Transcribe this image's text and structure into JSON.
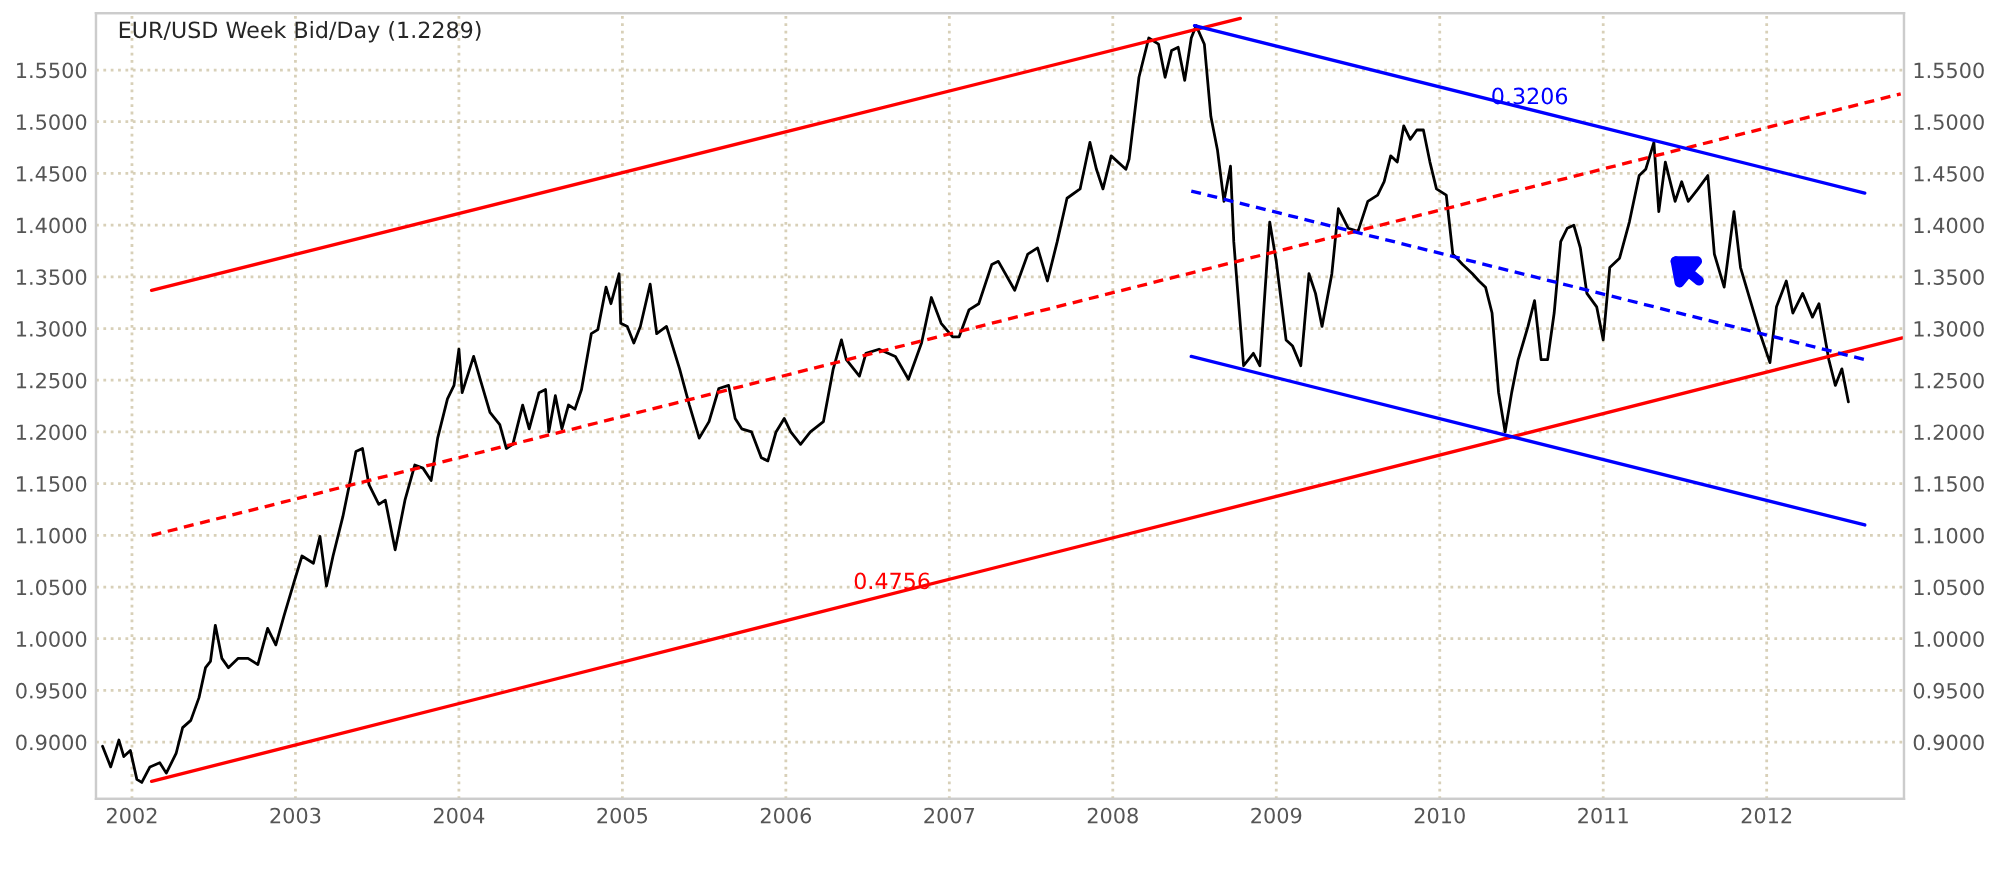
{
  "chart_data": {
    "type": "line",
    "title": "EUR/USD Week Bid/Day (1.2289)",
    "xlim": [
      2001.78,
      2012.84
    ],
    "xticks": [
      2002,
      2003,
      2004,
      2005,
      2006,
      2007,
      2008,
      2009,
      2010,
      2011,
      2012
    ],
    "ylim": [
      0.845,
      1.605
    ],
    "yticks": [
      {
        "value": 0.9,
        "label": "0.9000"
      },
      {
        "value": 0.95,
        "label": "0.9500"
      },
      {
        "value": 1.0,
        "label": "1.0000"
      },
      {
        "value": 1.05,
        "label": "1.0500"
      },
      {
        "value": 1.1,
        "label": "1.1000"
      },
      {
        "value": 1.15,
        "label": "1.1500"
      },
      {
        "value": 1.2,
        "label": "1.2000"
      },
      {
        "value": 1.25,
        "label": "1.2500"
      },
      {
        "value": 1.3,
        "label": "1.3000"
      },
      {
        "value": 1.35,
        "label": "1.3500"
      },
      {
        "value": 1.4,
        "label": "1.4000"
      },
      {
        "value": 1.45,
        "label": "1.4500"
      },
      {
        "value": 1.5,
        "label": "1.5000"
      },
      {
        "value": 1.55,
        "label": "1.5500"
      }
    ],
    "y2lim": [
      0.845,
      1.605
    ],
    "y2ticks": [
      {
        "value": 0.9,
        "label": "0.9000"
      },
      {
        "value": 0.95,
        "label": "0.9500"
      },
      {
        "value": 1.0,
        "label": "1.0000"
      },
      {
        "value": 1.05,
        "label": "1.0500"
      },
      {
        "value": 1.1,
        "label": "1.1000"
      },
      {
        "value": 1.15,
        "label": "1.1500"
      },
      {
        "value": 1.2,
        "label": "1.2000"
      },
      {
        "value": 1.25,
        "label": "1.2500"
      },
      {
        "value": 1.3,
        "label": "1.3000"
      },
      {
        "value": 1.35,
        "label": "1.3500"
      },
      {
        "value": 1.4,
        "label": "1.4000"
      },
      {
        "value": 1.45,
        "label": "1.4500"
      },
      {
        "value": 1.5,
        "label": "1.5000"
      },
      {
        "value": 1.55,
        "label": "1.5500"
      }
    ],
    "grid": true,
    "marker": "none",
    "series": [
      {
        "color": "#000000",
        "line_style": "solid",
        "x": [
          2001.82,
          2001.87,
          2001.92,
          2001.95,
          2001.99,
          2002.03,
          2002.06,
          2002.11,
          2002.17,
          2002.21,
          2002.27,
          2002.31,
          2002.36,
          2002.41,
          2002.45,
          2002.48,
          2002.51,
          2002.55,
          2002.59,
          2002.65,
          2002.71,
          2002.77,
          2002.83,
          2002.88,
          2002.93,
          2002.99,
          2003.04,
          2003.11,
          2003.15,
          2003.19,
          2003.23,
          2003.29,
          2003.33,
          2003.37,
          2003.41,
          2003.45,
          2003.51,
          2003.55,
          2003.61,
          2003.67,
          2003.73,
          2003.78,
          2003.83,
          2003.87,
          2003.93,
          2003.97,
          2004.0,
          2004.02,
          2004.09,
          2004.13,
          2004.19,
          2004.25,
          2004.29,
          2004.33,
          2004.39,
          2004.43,
          2004.49,
          2004.53,
          2004.55,
          2004.59,
          2004.63,
          2004.67,
          2004.71,
          2004.75,
          2004.81,
          2004.85,
          2004.9,
          2004.93,
          2004.98,
          2004.99,
          2005.03,
          2005.07,
          2005.11,
          2005.17,
          2005.21,
          2005.27,
          2005.35,
          2005.41,
          2005.47,
          2005.53,
          2005.59,
          2005.65,
          2005.69,
          2005.73,
          2005.79,
          2005.85,
          2005.89,
          2005.94,
          2005.99,
          2006.03,
          2006.09,
          2006.15,
          2006.23,
          2006.29,
          2006.34,
          2006.37,
          2006.45,
          2006.49,
          2006.57,
          2006.67,
          2006.75,
          2006.83,
          2006.89,
          2006.95,
          2007.02,
          2007.06,
          2007.12,
          2007.18,
          2007.26,
          2007.3,
          2007.4,
          2007.48,
          2007.54,
          2007.6,
          2007.66,
          2007.72,
          2007.8,
          2007.86,
          2007.9,
          2007.94,
          2007.99,
          2008.08,
          2008.1,
          2008.16,
          2008.22,
          2008.28,
          2008.32,
          2008.36,
          2008.4,
          2008.44,
          2008.48,
          2008.51,
          2008.56,
          2008.6,
          2008.64,
          2008.68,
          2008.72,
          2008.74,
          2008.8,
          2008.86,
          2008.9,
          2008.96,
          2009.0,
          2009.06,
          2009.1,
          2009.15,
          2009.2,
          2009.24,
          2009.28,
          2009.34,
          2009.38,
          2009.44,
          2009.5,
          2009.56,
          2009.62,
          2009.66,
          2009.7,
          2009.74,
          2009.78,
          2009.82,
          2009.86,
          2009.9,
          2009.94,
          2009.98,
          2010.04,
          2010.08,
          2010.14,
          2010.2,
          2010.24,
          2010.28,
          2010.32,
          2010.36,
          2010.4,
          2010.44,
          2010.48,
          2010.54,
          2010.58,
          2010.62,
          2010.66,
          2010.7,
          2010.74,
          2010.78,
          2010.82,
          2010.86,
          2010.9,
          2010.96,
          2011.0,
          2011.04,
          2011.1,
          2011.16,
          2011.22,
          2011.26,
          2011.31,
          2011.34,
          2011.38,
          2011.44,
          2011.48,
          2011.52,
          2011.58,
          2011.64,
          2011.68,
          2011.74,
          2011.8,
          2011.84,
          2011.9,
          2011.96,
          2012.02,
          2012.06,
          2012.12,
          2012.16,
          2012.22,
          2012.28,
          2012.32,
          2012.38,
          2012.42,
          2012.46,
          2012.5
        ],
        "values": [
          0.896,
          0.876,
          0.902,
          0.886,
          0.892,
          0.864,
          0.861,
          0.876,
          0.88,
          0.87,
          0.889,
          0.914,
          0.921,
          0.943,
          0.972,
          0.978,
          1.013,
          0.981,
          0.972,
          0.981,
          0.981,
          0.975,
          1.01,
          0.994,
          1.022,
          1.054,
          1.08,
          1.073,
          1.099,
          1.051,
          1.08,
          1.118,
          1.149,
          1.181,
          1.184,
          1.149,
          1.13,
          1.134,
          1.086,
          1.134,
          1.168,
          1.165,
          1.153,
          1.194,
          1.232,
          1.245,
          1.28,
          1.238,
          1.273,
          1.251,
          1.219,
          1.207,
          1.184,
          1.188,
          1.226,
          1.203,
          1.238,
          1.241,
          1.2,
          1.235,
          1.203,
          1.226,
          1.222,
          1.241,
          1.295,
          1.299,
          1.34,
          1.324,
          1.353,
          1.305,
          1.302,
          1.286,
          1.302,
          1.343,
          1.295,
          1.302,
          1.261,
          1.226,
          1.194,
          1.21,
          1.242,
          1.245,
          1.213,
          1.203,
          1.2,
          1.175,
          1.172,
          1.2,
          1.213,
          1.2,
          1.188,
          1.2,
          1.21,
          1.261,
          1.289,
          1.27,
          1.254,
          1.276,
          1.28,
          1.273,
          1.251,
          1.286,
          1.33,
          1.305,
          1.292,
          1.292,
          1.318,
          1.324,
          1.362,
          1.365,
          1.337,
          1.372,
          1.378,
          1.346,
          1.384,
          1.426,
          1.435,
          1.48,
          1.454,
          1.435,
          1.467,
          1.454,
          1.464,
          1.543,
          1.581,
          1.575,
          1.543,
          1.569,
          1.572,
          1.54,
          1.581,
          1.593,
          1.575,
          1.505,
          1.473,
          1.423,
          1.457,
          1.384,
          1.264,
          1.276,
          1.264,
          1.403,
          1.365,
          1.289,
          1.283,
          1.264,
          1.353,
          1.334,
          1.302,
          1.353,
          1.416,
          1.397,
          1.394,
          1.423,
          1.429,
          1.442,
          1.467,
          1.461,
          1.496,
          1.483,
          1.492,
          1.492,
          1.461,
          1.435,
          1.429,
          1.372,
          1.362,
          1.353,
          1.346,
          1.34,
          1.315,
          1.238,
          1.2,
          1.238,
          1.27,
          1.302,
          1.327,
          1.27,
          1.27,
          1.315,
          1.384,
          1.397,
          1.4,
          1.378,
          1.334,
          1.321,
          1.289,
          1.359,
          1.368,
          1.403,
          1.448,
          1.454,
          1.48,
          1.413,
          1.461,
          1.423,
          1.442,
          1.423,
          1.435,
          1.448,
          1.372,
          1.34,
          1.413,
          1.359,
          1.327,
          1.295,
          1.267,
          1.321,
          1.346,
          1.315,
          1.334,
          1.311,
          1.324,
          1.27,
          1.245,
          1.261,
          1.229
        ]
      },
      {
        "color": "#ff0000",
        "line_style": "solid",
        "x": [
          2002.12,
          2008.78
        ],
        "values": [
          1.337,
          1.6
        ]
      },
      {
        "color": "#ff0000",
        "line_style": "dashed",
        "x": [
          2002.12,
          2012.82
        ],
        "values": [
          1.1,
          1.527
        ]
      },
      {
        "color": "#ff0000",
        "line_style": "solid",
        "x": [
          2002.12,
          2012.83
        ],
        "values": [
          0.862,
          1.291
        ]
      },
      {
        "color": "#0000ff",
        "line_style": "solid",
        "x": [
          2008.5,
          2012.6
        ],
        "values": [
          1.593,
          1.431
        ]
      },
      {
        "color": "#0000ff",
        "line_style": "dashed",
        "x": [
          2008.48,
          2012.6
        ],
        "values": [
          1.433,
          1.27
        ]
      },
      {
        "color": "#0000ff",
        "line_style": "solid",
        "x": [
          2008.48,
          2012.6
        ],
        "values": [
          1.273,
          1.11
        ]
      }
    ],
    "annotations": [
      {
        "text": "0.4756",
        "x": 2006.65,
        "y": 1.054
      },
      {
        "text": "0.3206",
        "x": 2010.55,
        "y": 1.523
      }
    ]
  }
}
